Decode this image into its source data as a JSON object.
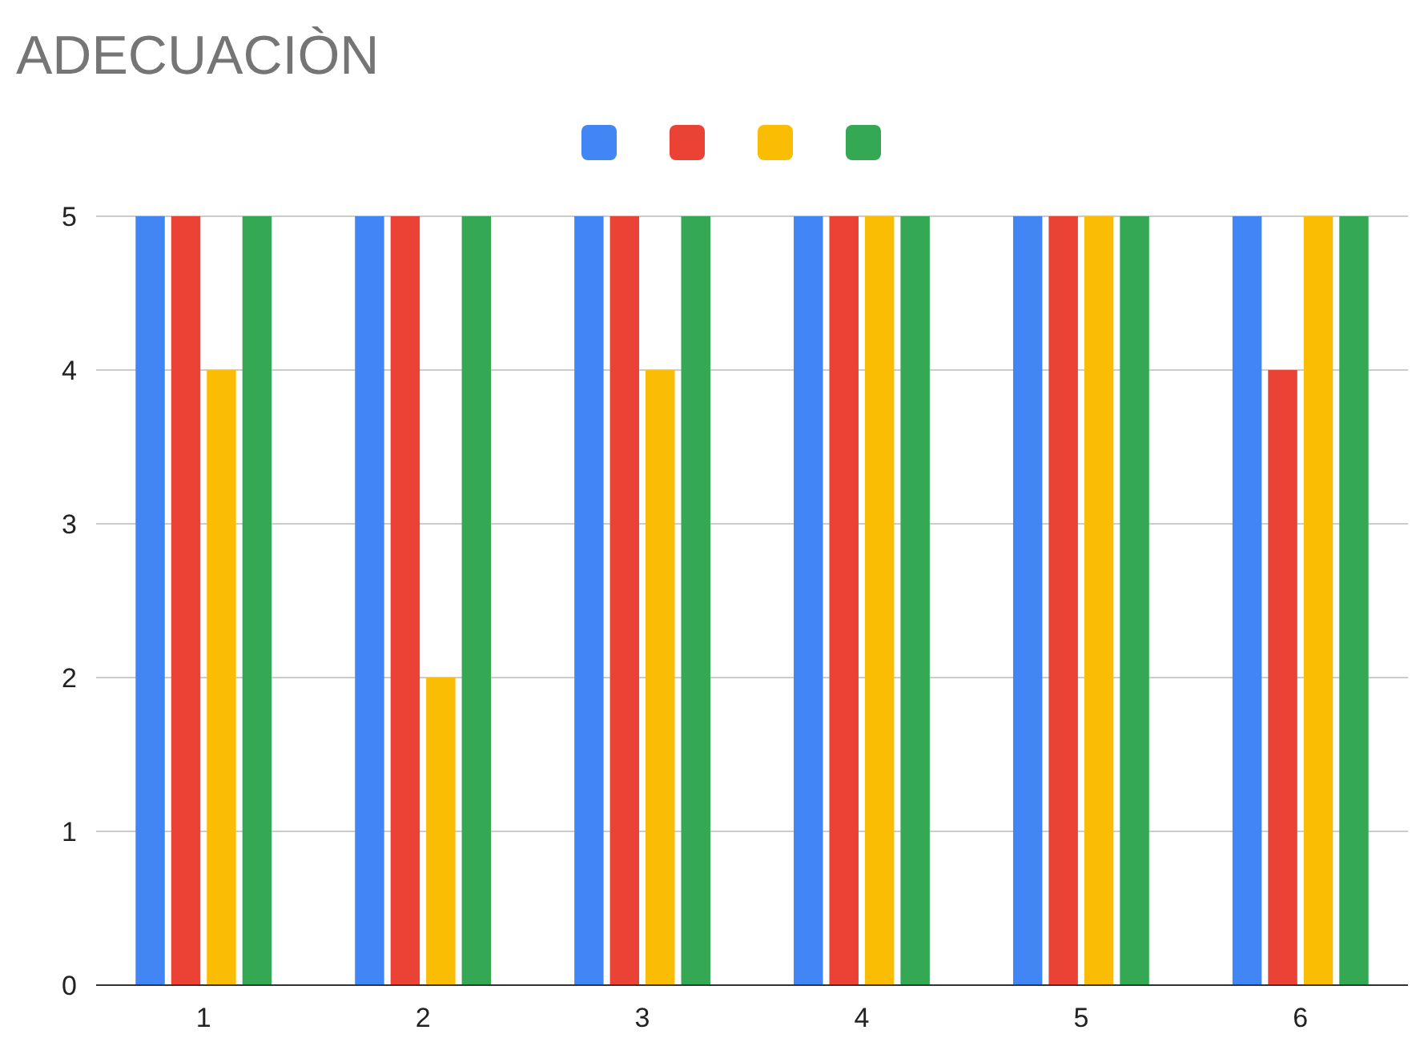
{
  "chart_data": {
    "type": "bar",
    "title": "ADECUACIÒN",
    "categories": [
      "1",
      "2",
      "3",
      "4",
      "5",
      "6"
    ],
    "series": [
      {
        "color": "#4285f4",
        "values": [
          5,
          5,
          5,
          5,
          5,
          5
        ]
      },
      {
        "color": "#ea4335",
        "values": [
          5,
          5,
          5,
          5,
          5,
          4
        ]
      },
      {
        "color": "#fbbc04",
        "values": [
          4,
          2,
          4,
          5,
          5,
          5
        ]
      },
      {
        "color": "#34a853",
        "values": [
          5,
          5,
          5,
          5,
          5,
          5
        ]
      }
    ],
    "ylim": [
      0,
      5
    ],
    "yticks": [
      0,
      1,
      2,
      3,
      4,
      5
    ],
    "grid": "y"
  }
}
